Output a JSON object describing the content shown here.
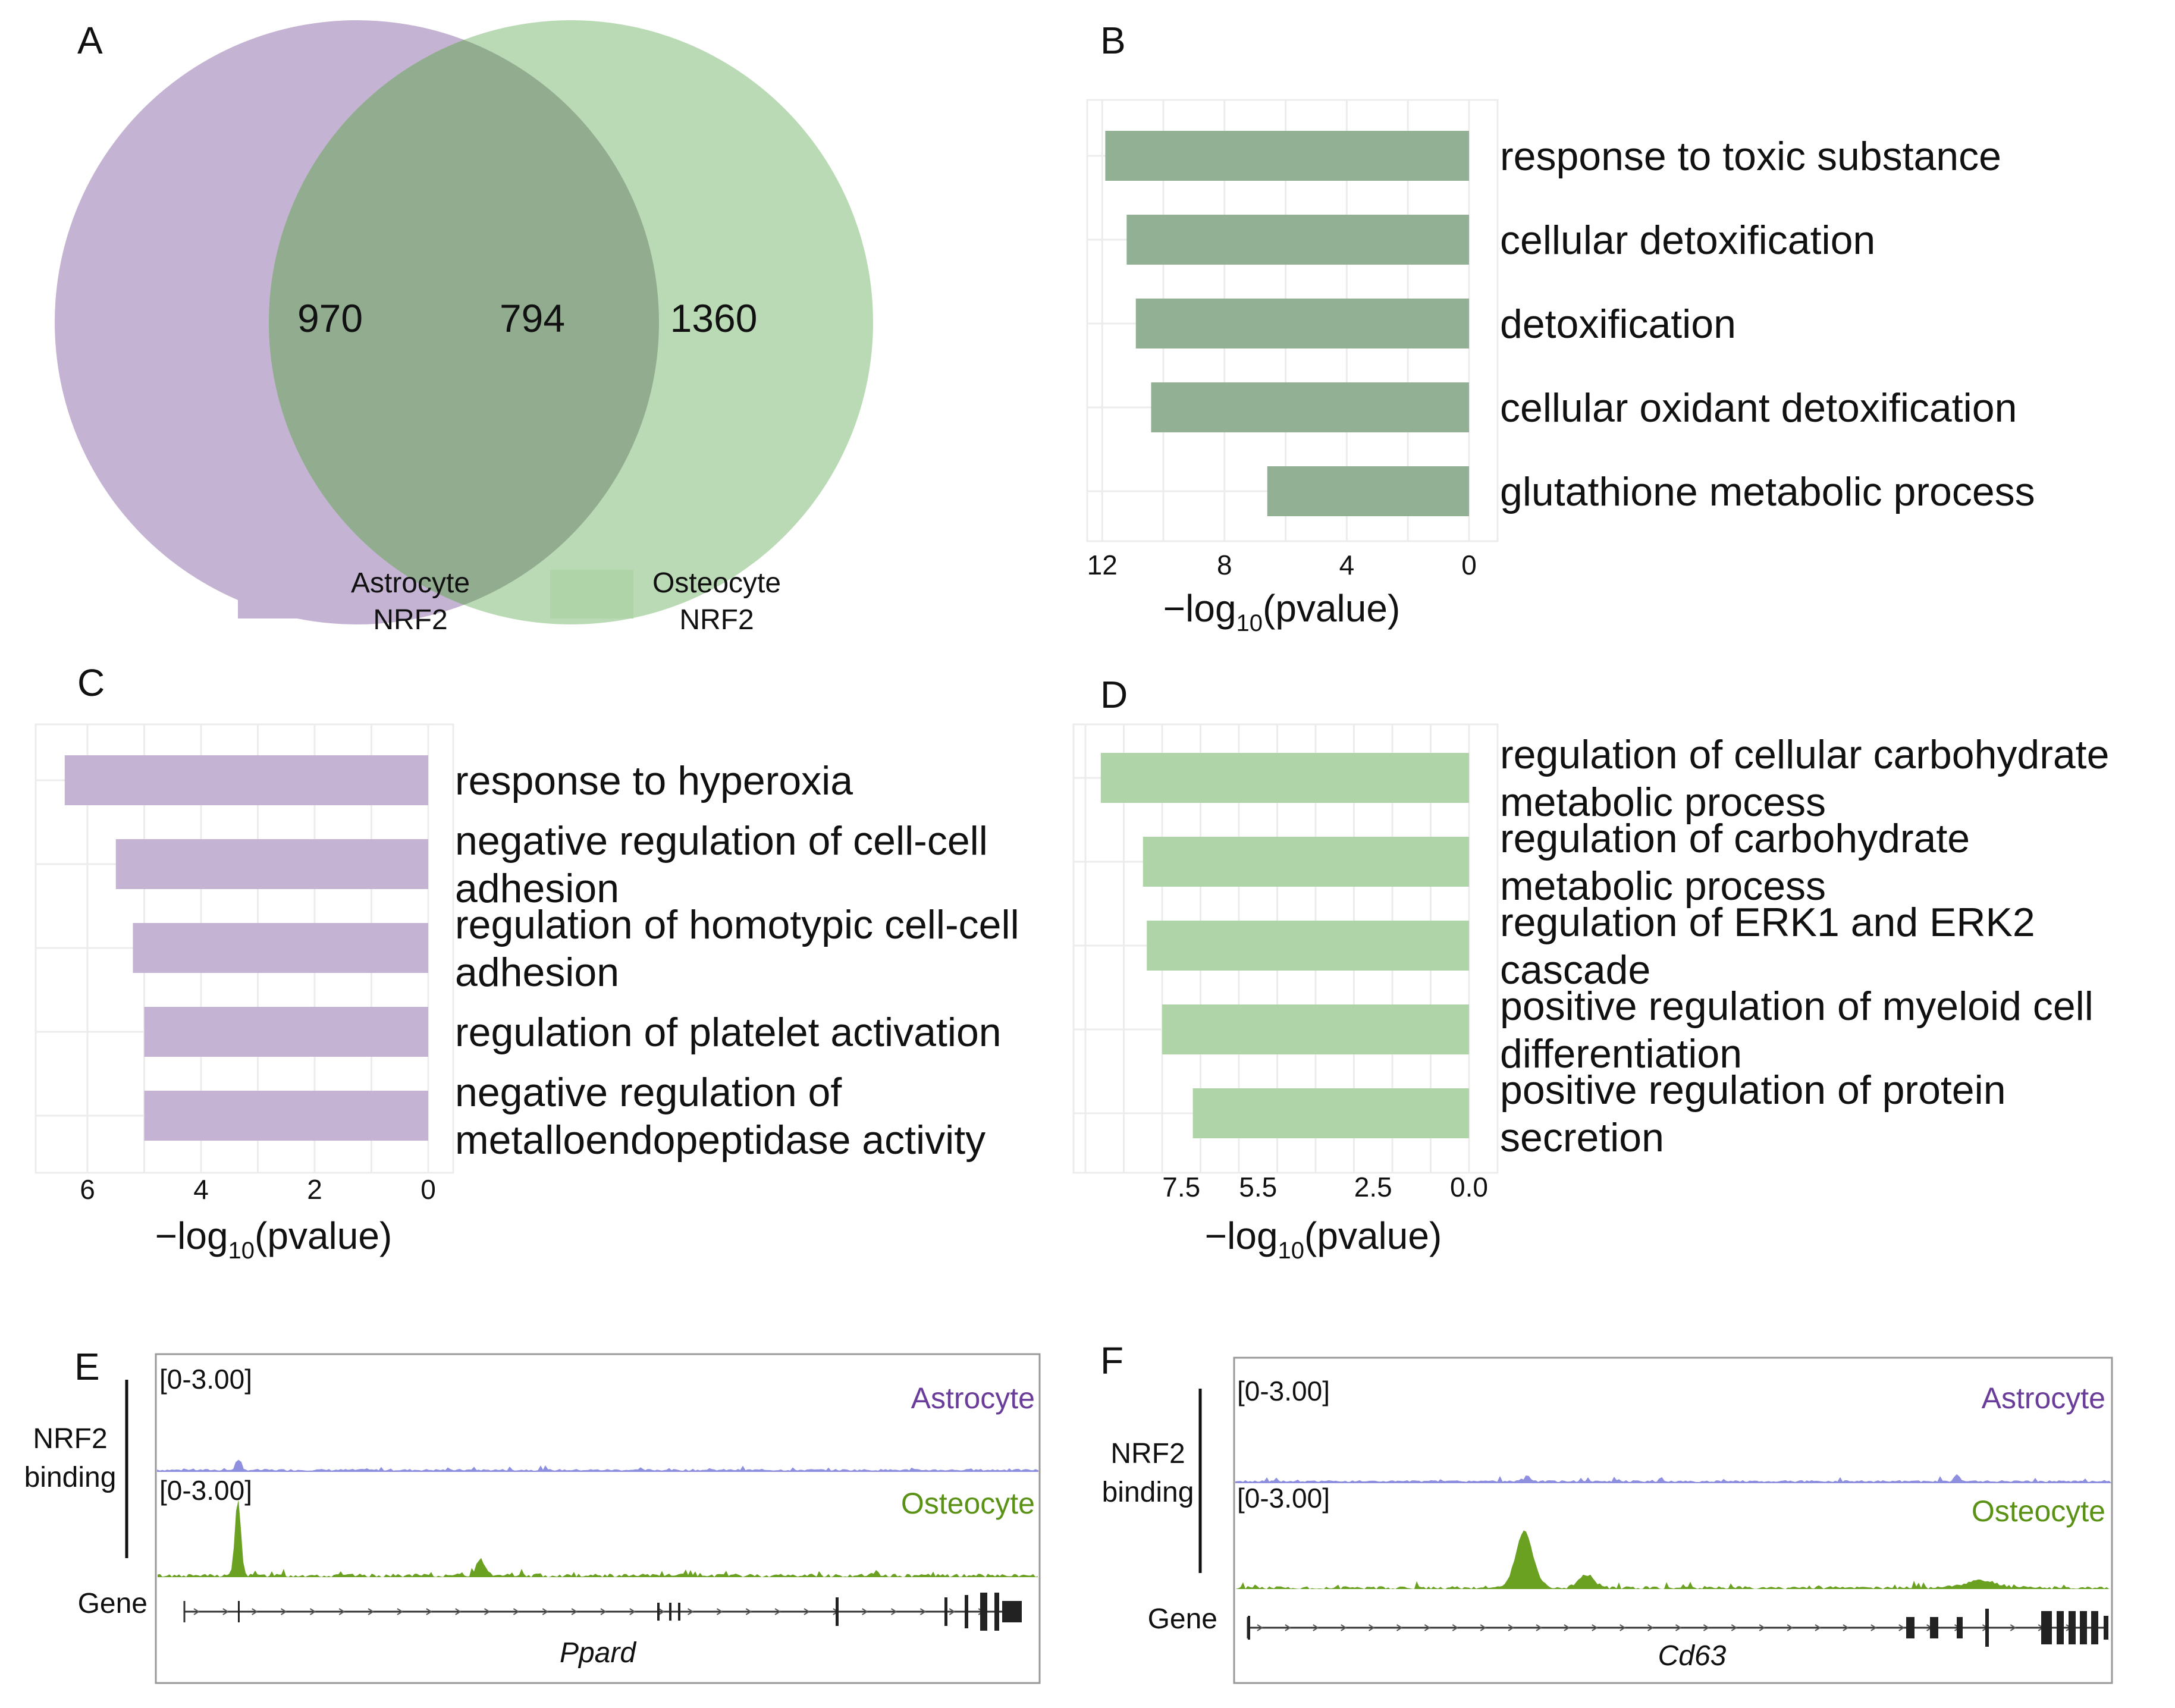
{
  "panels": {
    "a": "A",
    "b": "B",
    "c": "C",
    "d": "D",
    "e": "E",
    "f": "F"
  },
  "venn": {
    "left_only": "970",
    "overlap": "794",
    "right_only": "1360",
    "legend": [
      {
        "line1": "Astrocyte",
        "line2": "NRF2",
        "color": "#c5b3d3"
      },
      {
        "line1": "Osteocyte",
        "line2": "NRF2",
        "color": "#aed4a8"
      }
    ]
  },
  "axis_title": {
    "main": "−log",
    "sub": "10",
    "rest": "(pvalue)"
  },
  "chart_data": [
    {
      "panel": "B",
      "type": "bar",
      "orientation": "horizontal",
      "x_reversed": true,
      "color": "#92b093",
      "xlim": [
        0,
        13
      ],
      "ticks": [
        12,
        8,
        4,
        0
      ],
      "tick_labels": [
        "12",
        "8",
        "4",
        "0"
      ],
      "categories": [
        [
          "response to toxic substance"
        ],
        [
          "cellular detoxification"
        ],
        [
          "detoxification"
        ],
        [
          "cellular oxidant detoxification"
        ],
        [
          "glutathione metabolic process"
        ]
      ],
      "values": [
        11.9,
        11.2,
        10.9,
        10.4,
        6.6
      ],
      "xlabel": "−log10(pvalue)"
    },
    {
      "panel": "C",
      "type": "bar",
      "orientation": "horizontal",
      "x_reversed": true,
      "color": "#c5b3d3",
      "xlim": [
        0,
        7
      ],
      "ticks": [
        6,
        4,
        2,
        0
      ],
      "tick_labels": [
        "6",
        "4",
        "2",
        "0"
      ],
      "categories": [
        [
          "response to hyperoxia"
        ],
        [
          "negative regulation of cell-cell",
          "adhesion"
        ],
        [
          "regulation of homotypic cell-cell",
          "adhesion"
        ],
        [
          "regulation of platelet activation"
        ],
        [
          "negative regulation of",
          "metalloendopeptidase activity"
        ]
      ],
      "values": [
        6.4,
        5.5,
        5.2,
        5.0,
        5.0
      ],
      "xlabel": "−log10(pvalue)"
    },
    {
      "panel": "D",
      "type": "bar",
      "orientation": "horizontal",
      "x_reversed": true,
      "color": "#aed4a8",
      "xlim": [
        0,
        10
      ],
      "ticks": [
        7.5,
        5.5,
        2.5,
        0.0
      ],
      "tick_labels": [
        "7.5",
        "5.5",
        "2.5",
        "0.0"
      ],
      "categories": [
        [
          "regulation of cellular carbohydrate",
          "metabolic process"
        ],
        [
          "regulation of carbohydrate",
          "metabolic process"
        ],
        [
          "regulation of ERK1 and ERK2",
          "cascade"
        ],
        [
          "positive regulation of myeloid cell",
          "differentiation"
        ],
        [
          "positive regulation of protein",
          "secretion"
        ]
      ],
      "values": [
        9.6,
        8.5,
        8.4,
        8.0,
        7.2
      ],
      "xlabel": "−log10(pvalue)"
    }
  ],
  "tracks": {
    "side_label": [
      "NRF2",
      "binding"
    ],
    "gene_label": "Gene",
    "range": "[0-3.00]",
    "astrocyte_label": "Astrocyte",
    "osteocyte_label": "Osteocyte",
    "astrocyte_color": "#6a3d9a",
    "osteocyte_color": "#5a9216",
    "astro_signal_color": "#8f8fe0",
    "osteo_signal_color": "#6aa121",
    "E": {
      "gene": "Ppard"
    },
    "F": {
      "gene": "Cd63"
    }
  }
}
